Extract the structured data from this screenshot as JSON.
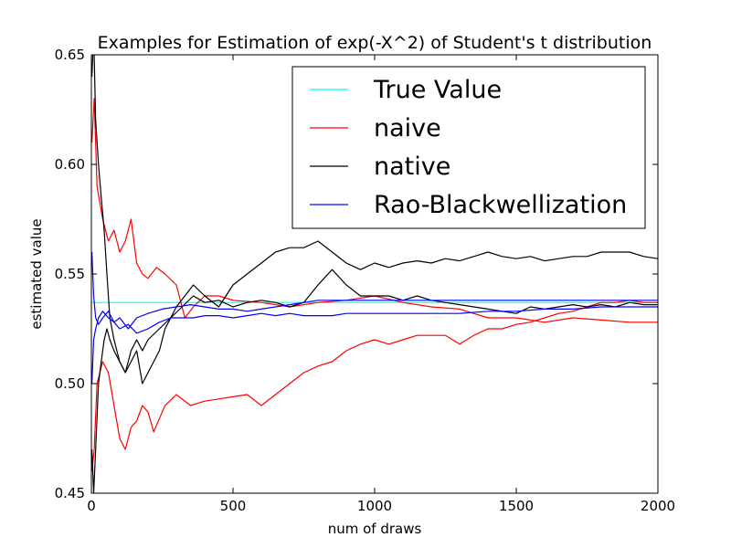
{
  "chart_data": {
    "type": "line",
    "title": "Examples for Estimation of exp(-X^2) of Student's t distribution",
    "xlabel": "num of draws",
    "ylabel": "estimated value",
    "xlim": [
      0,
      2000
    ],
    "ylim": [
      0.45,
      0.65
    ],
    "xticks": [
      0,
      500,
      1000,
      1500,
      2000
    ],
    "xtick_labels": [
      "0",
      "500",
      "1000",
      "1500",
      "2000"
    ],
    "yticks": [
      0.45,
      0.5,
      0.55,
      0.6,
      0.65
    ],
    "ytick_labels": [
      "0.45",
      "0.50",
      "0.55",
      "0.60",
      "0.65"
    ],
    "grid": false,
    "legend_position": "top-right",
    "legend": [
      {
        "label": "True Value",
        "color": "#00ffff"
      },
      {
        "label": "naive",
        "color": "#ff0000"
      },
      {
        "label": "native",
        "color": "#000000"
      },
      {
        "label": "Rao-Blackwellization",
        "color": "#0000ff"
      }
    ],
    "series": [
      {
        "name": "True Value",
        "color": "#00ffff",
        "points": [
          [
            0,
            0.537
          ],
          [
            2000,
            0.537
          ]
        ]
      },
      {
        "name": "naive",
        "color": "#ff0000",
        "points": [
          [
            2,
            0.61
          ],
          [
            10,
            0.63
          ],
          [
            20,
            0.59
          ],
          [
            40,
            0.575
          ],
          [
            60,
            0.565
          ],
          [
            80,
            0.57
          ],
          [
            100,
            0.56
          ],
          [
            120,
            0.565
          ],
          [
            140,
            0.575
          ],
          [
            160,
            0.555
          ],
          [
            180,
            0.55
          ],
          [
            200,
            0.548
          ],
          [
            230,
            0.553
          ],
          [
            260,
            0.55
          ],
          [
            300,
            0.545
          ],
          [
            330,
            0.53
          ],
          [
            360,
            0.535
          ],
          [
            400,
            0.54
          ],
          [
            450,
            0.54
          ],
          [
            500,
            0.538
          ],
          [
            600,
            0.537
          ],
          [
            700,
            0.535
          ],
          [
            800,
            0.537
          ],
          [
            900,
            0.538
          ],
          [
            1000,
            0.54
          ],
          [
            1100,
            0.537
          ],
          [
            1200,
            0.535
          ],
          [
            1300,
            0.534
          ],
          [
            1400,
            0.53
          ],
          [
            1500,
            0.53
          ],
          [
            1600,
            0.528
          ],
          [
            1700,
            0.53
          ],
          [
            1800,
            0.529
          ],
          [
            1900,
            0.528
          ],
          [
            2000,
            0.528
          ]
        ]
      },
      {
        "name": "naive",
        "color": "#ff0000",
        "points": [
          [
            2,
            0.46
          ],
          [
            10,
            0.47
          ],
          [
            20,
            0.5
          ],
          [
            40,
            0.51
          ],
          [
            60,
            0.505
          ],
          [
            80,
            0.49
          ],
          [
            100,
            0.475
          ],
          [
            120,
            0.47
          ],
          [
            140,
            0.48
          ],
          [
            160,
            0.483
          ],
          [
            180,
            0.49
          ],
          [
            200,
            0.487
          ],
          [
            220,
            0.478
          ],
          [
            260,
            0.49
          ],
          [
            300,
            0.495
          ],
          [
            350,
            0.49
          ],
          [
            400,
            0.492
          ],
          [
            450,
            0.493
          ],
          [
            500,
            0.494
          ],
          [
            550,
            0.495
          ],
          [
            600,
            0.49
          ],
          [
            650,
            0.495
          ],
          [
            700,
            0.5
          ],
          [
            750,
            0.505
          ],
          [
            800,
            0.508
          ],
          [
            850,
            0.51
          ],
          [
            900,
            0.515
          ],
          [
            950,
            0.518
          ],
          [
            1000,
            0.52
          ],
          [
            1050,
            0.518
          ],
          [
            1100,
            0.52
          ],
          [
            1150,
            0.522
          ],
          [
            1200,
            0.522
          ],
          [
            1250,
            0.522
          ],
          [
            1300,
            0.518
          ],
          [
            1350,
            0.522
          ],
          [
            1400,
            0.525
          ],
          [
            1450,
            0.525
          ],
          [
            1500,
            0.527
          ],
          [
            1550,
            0.528
          ],
          [
            1600,
            0.53
          ],
          [
            1650,
            0.532
          ],
          [
            1700,
            0.533
          ],
          [
            1750,
            0.535
          ],
          [
            1800,
            0.537
          ],
          [
            1850,
            0.537
          ],
          [
            1900,
            0.538
          ],
          [
            1950,
            0.537
          ],
          [
            2000,
            0.537
          ]
        ]
      },
      {
        "name": "native",
        "color": "#000000",
        "points": [
          [
            2,
            0.64
          ],
          [
            8,
            0.66
          ],
          [
            15,
            0.62
          ],
          [
            25,
            0.6
          ],
          [
            35,
            0.585
          ],
          [
            45,
            0.57
          ],
          [
            55,
            0.55
          ],
          [
            65,
            0.53
          ],
          [
            80,
            0.52
          ],
          [
            100,
            0.51
          ],
          [
            120,
            0.505
          ],
          [
            140,
            0.51
          ],
          [
            160,
            0.515
          ],
          [
            180,
            0.5
          ],
          [
            200,
            0.505
          ],
          [
            220,
            0.51
          ],
          [
            240,
            0.515
          ],
          [
            260,
            0.525
          ],
          [
            280,
            0.53
          ],
          [
            300,
            0.535
          ],
          [
            330,
            0.54
          ],
          [
            360,
            0.545
          ],
          [
            400,
            0.54
          ],
          [
            450,
            0.535
          ],
          [
            500,
            0.545
          ],
          [
            550,
            0.55
          ],
          [
            600,
            0.555
          ],
          [
            650,
            0.56
          ],
          [
            700,
            0.562
          ],
          [
            750,
            0.562
          ],
          [
            800,
            0.565
          ],
          [
            850,
            0.56
          ],
          [
            900,
            0.555
          ],
          [
            950,
            0.552
          ],
          [
            1000,
            0.555
          ],
          [
            1050,
            0.553
          ],
          [
            1100,
            0.555
          ],
          [
            1150,
            0.556
          ],
          [
            1200,
            0.555
          ],
          [
            1250,
            0.557
          ],
          [
            1300,
            0.556
          ],
          [
            1350,
            0.558
          ],
          [
            1400,
            0.56
          ],
          [
            1450,
            0.558
          ],
          [
            1500,
            0.557
          ],
          [
            1550,
            0.558
          ],
          [
            1600,
            0.556
          ],
          [
            1650,
            0.557
          ],
          [
            1700,
            0.558
          ],
          [
            1750,
            0.558
          ],
          [
            1800,
            0.56
          ],
          [
            1850,
            0.56
          ],
          [
            1900,
            0.56
          ],
          [
            1950,
            0.558
          ],
          [
            2000,
            0.557
          ]
        ]
      },
      {
        "name": "native",
        "color": "#000000",
        "points": [
          [
            2,
            0.47
          ],
          [
            8,
            0.45
          ],
          [
            15,
            0.47
          ],
          [
            25,
            0.5
          ],
          [
            35,
            0.51
          ],
          [
            45,
            0.52
          ],
          [
            55,
            0.525
          ],
          [
            65,
            0.52
          ],
          [
            80,
            0.515
          ],
          [
            100,
            0.51
          ],
          [
            120,
            0.505
          ],
          [
            140,
            0.515
          ],
          [
            160,
            0.52
          ],
          [
            180,
            0.515
          ],
          [
            200,
            0.52
          ],
          [
            240,
            0.525
          ],
          [
            280,
            0.53
          ],
          [
            320,
            0.535
          ],
          [
            360,
            0.54
          ],
          [
            400,
            0.537
          ],
          [
            450,
            0.538
          ],
          [
            500,
            0.535
          ],
          [
            550,
            0.537
          ],
          [
            600,
            0.538
          ],
          [
            650,
            0.537
          ],
          [
            700,
            0.535
          ],
          [
            750,
            0.537
          ],
          [
            800,
            0.545
          ],
          [
            850,
            0.552
          ],
          [
            900,
            0.545
          ],
          [
            950,
            0.54
          ],
          [
            1000,
            0.54
          ],
          [
            1050,
            0.54
          ],
          [
            1100,
            0.538
          ],
          [
            1150,
            0.54
          ],
          [
            1200,
            0.538
          ],
          [
            1250,
            0.537
          ],
          [
            1300,
            0.536
          ],
          [
            1350,
            0.535
          ],
          [
            1400,
            0.534
          ],
          [
            1450,
            0.533
          ],
          [
            1500,
            0.532
          ],
          [
            1550,
            0.535
          ],
          [
            1600,
            0.534
          ],
          [
            1650,
            0.535
          ],
          [
            1700,
            0.536
          ],
          [
            1750,
            0.535
          ],
          [
            1800,
            0.536
          ],
          [
            1850,
            0.535
          ],
          [
            1900,
            0.537
          ],
          [
            1950,
            0.536
          ],
          [
            2000,
            0.536
          ]
        ]
      },
      {
        "name": "Rao-Blackwellization",
        "color": "#0000ff",
        "points": [
          [
            2,
            0.56
          ],
          [
            8,
            0.54
          ],
          [
            15,
            0.53
          ],
          [
            25,
            0.527
          ],
          [
            40,
            0.53
          ],
          [
            60,
            0.533
          ],
          [
            80,
            0.528
          ],
          [
            100,
            0.525
          ],
          [
            130,
            0.527
          ],
          [
            160,
            0.523
          ],
          [
            200,
            0.525
          ],
          [
            240,
            0.528
          ],
          [
            280,
            0.53
          ],
          [
            320,
            0.53
          ],
          [
            360,
            0.53
          ],
          [
            400,
            0.531
          ],
          [
            450,
            0.531
          ],
          [
            500,
            0.53
          ],
          [
            550,
            0.531
          ],
          [
            600,
            0.532
          ],
          [
            650,
            0.531
          ],
          [
            700,
            0.532
          ],
          [
            750,
            0.531
          ],
          [
            800,
            0.531
          ],
          [
            850,
            0.531
          ],
          [
            900,
            0.532
          ],
          [
            1000,
            0.532
          ],
          [
            1100,
            0.532
          ],
          [
            1200,
            0.532
          ],
          [
            1300,
            0.532
          ],
          [
            1400,
            0.533
          ],
          [
            1500,
            0.533
          ],
          [
            1600,
            0.534
          ],
          [
            1700,
            0.534
          ],
          [
            1800,
            0.535
          ],
          [
            1900,
            0.535
          ],
          [
            2000,
            0.535
          ]
        ]
      },
      {
        "name": "Rao-Blackwellization",
        "color": "#0000ff",
        "points": [
          [
            2,
            0.5
          ],
          [
            8,
            0.52
          ],
          [
            15,
            0.525
          ],
          [
            25,
            0.53
          ],
          [
            40,
            0.533
          ],
          [
            60,
            0.53
          ],
          [
            80,
            0.528
          ],
          [
            100,
            0.53
          ],
          [
            130,
            0.525
          ],
          [
            160,
            0.53
          ],
          [
            200,
            0.532
          ],
          [
            250,
            0.534
          ],
          [
            300,
            0.535
          ],
          [
            350,
            0.536
          ],
          [
            400,
            0.535
          ],
          [
            450,
            0.534
          ],
          [
            500,
            0.534
          ],
          [
            550,
            0.533
          ],
          [
            600,
            0.534
          ],
          [
            650,
            0.535
          ],
          [
            700,
            0.536
          ],
          [
            750,
            0.537
          ],
          [
            800,
            0.538
          ],
          [
            850,
            0.538
          ],
          [
            900,
            0.538
          ],
          [
            1000,
            0.538
          ],
          [
            1100,
            0.538
          ],
          [
            1200,
            0.538
          ],
          [
            1300,
            0.538
          ],
          [
            1400,
            0.538
          ],
          [
            1500,
            0.538
          ],
          [
            1600,
            0.538
          ],
          [
            1700,
            0.538
          ],
          [
            1800,
            0.538
          ],
          [
            1900,
            0.538
          ],
          [
            2000,
            0.538
          ]
        ]
      }
    ]
  }
}
